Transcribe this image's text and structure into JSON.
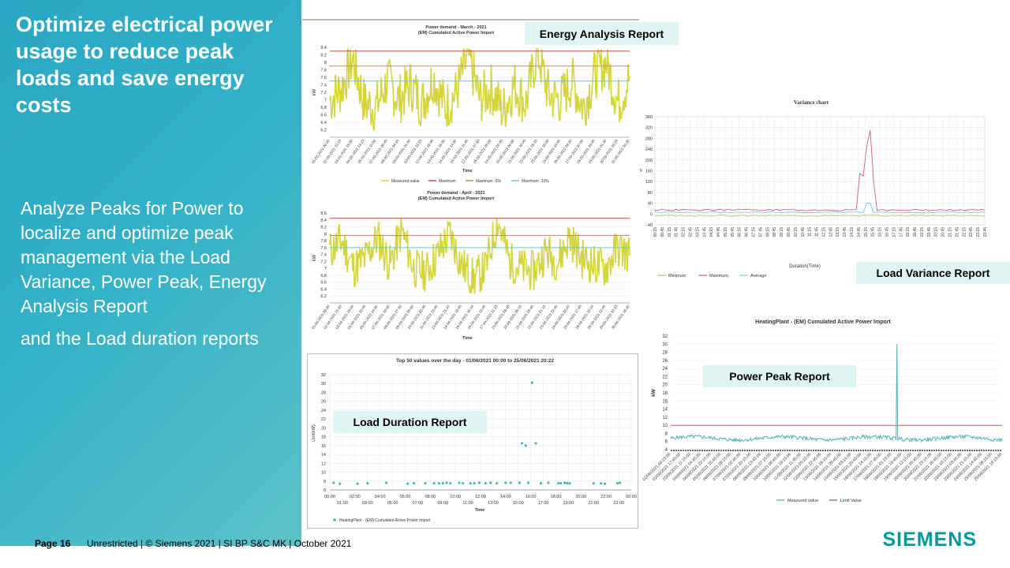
{
  "slide": {
    "title": "Optimize electrical power usage to reduce peak loads and save energy costs",
    "body_para1": "Analyze Peaks for Power to localize and optimize peak management via the Load Variance, Power Peak, Energy Analysis Report",
    "body_para2": "and the Load duration reports",
    "page": "Page 16",
    "footer": "Unrestricted | © Siemens 2021 | SI BP S&C MK | October 2021",
    "logo": "SIEMENS"
  },
  "colors": {
    "panel_gradient_start": "#2aa6c4",
    "panel_gradient_end": "#5cc2c9",
    "label_bg": "#dff5f2",
    "measured": "#d4d43c",
    "maximum": "#c0504d",
    "max_minus5": "#c98a6a",
    "max_minus10": "#66c8d8",
    "teal_series": "#4eb3b3",
    "siemens_teal": "#009999"
  },
  "labels": {
    "energy_analysis": "Energy Analysis Report",
    "load_variance": "Load Variance Report",
    "power_peak": "Power Peak Report",
    "load_duration": "Load Duration Report"
  },
  "chart_data": [
    {
      "id": "march",
      "type": "line",
      "title": "Power demand - March - 2021",
      "subtitle": "(EM) Cumulated Active Power Import",
      "xlabel": "Time",
      "ylabel": "kW",
      "ylim": [
        6.0,
        8.4
      ],
      "yticks": [
        "8.4",
        "8.2",
        "8",
        "7.8",
        "7.6",
        "7.4",
        "7.2",
        "7",
        "6.8",
        "6.6",
        "6.4",
        "6.2"
      ],
      "xticks": [
        "01-03-2021 00:30",
        "02-03-2021 22:15",
        "03-03-2021 15:30",
        "04-03-2021 13:15",
        "05-03-2021 11:00",
        "07-03-2021 06:45",
        "08-03-2021 04:15",
        "09-03-2021 01:30",
        "10-03-2021 23:15",
        "12-03-2021 18:45",
        "13-03-2021 16:30",
        "14-03-2021 14:00",
        "15-03-2021 11:45",
        "17-03-2021 07:30",
        "18-03-2021 05:00",
        "19-03-2021 02:45",
        "20-03-2021 00:30",
        "21-03-2021 20:45",
        "22-03-2021 18:15",
        "23-03-2021 16:00",
        "24-03-2021 13:45",
        "26-03-2021 09:30",
        "27-03-2021 07:00",
        "28-03-2021 03:45",
        "29-03-2021 01:30",
        "30-03-2021 23:15",
        "31-03-2021 20:30"
      ],
      "lines": {
        "maximum": 8.3,
        "max_minus5": 7.9,
        "max_minus10": 7.5
      },
      "legend": [
        "Measured value",
        "Maximum",
        "Maximum -5%",
        "Maximum -10%"
      ],
      "measured_pattern": [
        7.0,
        7.3,
        8.1,
        6.9,
        6.8,
        7.5,
        7.0,
        7.4,
        6.9,
        7.6,
        6.8,
        7.2,
        8.2,
        7.0,
        7.3,
        6.7,
        7.4,
        6.9,
        8.3,
        7.1,
        7.0,
        7.5,
        6.8,
        7.7,
        8.0,
        6.9,
        7.6
      ],
      "measured_spread": 0.7
    },
    {
      "id": "april",
      "type": "line",
      "title": "Power demand - April - 2021",
      "subtitle": "(EM) Cumulated Active Power Import",
      "xlabel": "Time",
      "ylabel": "kW",
      "ylim": [
        6.0,
        8.6
      ],
      "yticks": [
        "8.6",
        "8.4",
        "8.2",
        "8",
        "7.8",
        "7.6",
        "7.4",
        "7.2",
        "7",
        "6.8",
        "6.6",
        "6.4",
        "6.2"
      ],
      "xticks": [
        "01-04-2021 00:30",
        "02-04-2021 21:30",
        "03-04-2021 19:00",
        "04-04-2021 16:45",
        "05-04-2021 14:30",
        "07-04-2021 10:00",
        "08-04-2021 07:30",
        "09-04-2021 05:00",
        "10-04-2021 02:45",
        "11-04-2021 23:45",
        "13-04-2021 21:15",
        "14-04-2021 18:45",
        "15-04-2021 16:15",
        "16-04-2021 13:45",
        "17-04-2021 11:15",
        "19-04-2021 08:45",
        "20-04-2021 06:15",
        "21-04-2021 03:45",
        "22-04-2021 01:15",
        "23-04-2021 22:45",
        "24-04-2021 20:15",
        "25-04-2021 17:45",
        "26-04-2021 15:15",
        "28-04-2021 12:45",
        "29-04-2021 10:15",
        "30-04-2021 16:30"
      ],
      "lines": {
        "maximum": 8.45,
        "max_minus5": 7.95,
        "max_minus10": 7.6
      },
      "measured_pattern": [
        7.5,
        7.8,
        7.0,
        7.3,
        7.9,
        7.1,
        8.1,
        7.0,
        6.9,
        7.4,
        8.0,
        7.1,
        6.7,
        7.0,
        8.4,
        7.2,
        7.0,
        6.9,
        7.5,
        7.2,
        7.9,
        7.3,
        7.1,
        7.0,
        7.6,
        7.4
      ],
      "measured_spread": 0.6
    },
    {
      "id": "variance",
      "type": "line",
      "title": "Variance chart",
      "xlabel": "Duration(Time)",
      "ylabel": "F",
      "ylim": [
        -40,
        360
      ],
      "yticks": [
        "360",
        "320",
        "280",
        "240",
        "200",
        "160",
        "120",
        "80",
        "40",
        "0",
        "-40"
      ],
      "xticks": [
        "00:15",
        "00:45",
        "01:15",
        "01:45",
        "02:15",
        "02:45",
        "03:15",
        "03:45",
        "04:15",
        "04:45",
        "05:15",
        "05:45",
        "06:15",
        "06:45",
        "07:15",
        "07:45",
        "08:15",
        "08:45",
        "09:15",
        "09:45",
        "10:15",
        "10:45",
        "11:15",
        "11:45",
        "12:15",
        "12:45",
        "13:15",
        "13:45",
        "14:15",
        "14:45",
        "15:15",
        "15:45",
        "16:15",
        "16:45",
        "17:15",
        "17:45",
        "18:15",
        "18:45",
        "19:15",
        "19:45",
        "20:15",
        "20:45",
        "21:15",
        "21:45",
        "22:15",
        "22:45",
        "23:15",
        "23:45"
      ],
      "legend": [
        "Minimum",
        "Maximum",
        "Average"
      ],
      "peak": {
        "time": "16:30",
        "value": 310
      }
    },
    {
      "id": "heating",
      "type": "line",
      "title": "HeatingPlant - (EM) Cumulated Active Power Import",
      "ylabel": "kW",
      "ylim": [
        4,
        32
      ],
      "yticks": [
        "32",
        "30",
        "28",
        "26",
        "24",
        "22",
        "20",
        "18",
        "16",
        "14",
        "12",
        "10",
        "8",
        "6",
        "4"
      ],
      "xticks": [
        "01/06/2021 00:15:00",
        "02/06/2021 17:45:00",
        "03/06/2021 11:15:00",
        "04/06/2021 04:45:00",
        "04/06/2021 22:15:00",
        "05/06/2021 15:45:00",
        "06/06/2021 09:15:00",
        "07/06/2021 02:45:00",
        "07/06/2021 20:15:00",
        "08/06/2021 13:45:00",
        "09/06/2021 07:15:00",
        "10/06/2021 00:45:00",
        "10/06/2021 18:15:00",
        "11/06/2021 11:45:00",
        "12/06/2021 05:15:00",
        "12/06/2021 22:45:00",
        "13/06/2021 16:15:00",
        "14/06/2021 09:45:00",
        "15/06/2021 03:15:00",
        "15/06/2021 20:45:00",
        "16/06/2021 14:15:00",
        "17/06/2021 07:45:00",
        "18/06/2021 01:15:00",
        "18/06/2021 18:45:00",
        "19/06/2021 12:15:00",
        "20/06/2021 05:45:00",
        "20/06/2021 23:15:00",
        "21/06/2021 16:45:00",
        "22/06/2021 10:15:00",
        "23/06/2021 03:45:00",
        "23/06/2021 21:15:00",
        "24/06/2021 14:45:00",
        "25/06/2021 08:15:00",
        "25/06/2021 19:15:00"
      ],
      "legend": [
        "Measured value",
        "Limit Value"
      ],
      "limit": 10,
      "base": 6.8,
      "peak": {
        "time": "16/06/2021 14:15:00",
        "value": 30
      }
    },
    {
      "id": "duration",
      "type": "scatter",
      "title": "Top 50 values over the day - 01/06/2021 00:00 to 25/06/2021 20:22",
      "xlabel": "Time",
      "ylabel": "Unit(kW)",
      "ylim": [
        6,
        32
      ],
      "yticks": [
        "32",
        "30",
        "28",
        "26",
        "24",
        "22",
        "20",
        "18",
        "16",
        "14",
        "12",
        "10",
        "8",
        "6"
      ],
      "xticks_top": [
        "00:00",
        "02:00",
        "04:00",
        "06:00",
        "08:00",
        "10:00",
        "12:00",
        "14:00",
        "16:00",
        "18:00",
        "20:00",
        "22:00",
        "00:00"
      ],
      "xticks_bottom": [
        "01:00",
        "03:00",
        "05:00",
        "07:00",
        "09:00",
        "11:00",
        "13:00",
        "15:00",
        "17:00",
        "19:00",
        "21:00",
        "23:00"
      ],
      "legend": [
        "HeatingPlant - (EM) Cumulated Active Power Import"
      ],
      "x": [
        0.3,
        0.8,
        2.2,
        3.0,
        4.5,
        6.2,
        6.7,
        7.6,
        8.3,
        8.7,
        9.0,
        9.3,
        9.6,
        10.3,
        10.6,
        11.2,
        11.5,
        11.9,
        12.4,
        12.8,
        13.3,
        14.0,
        14.4,
        15.1,
        15.3,
        15.6,
        15.8,
        16.1,
        16.4,
        16.8,
        17.4,
        18.2,
        18.4,
        18.7,
        18.9,
        19.1,
        21.0,
        21.6,
        21.9,
        22.9,
        23.1
      ],
      "y": [
        7.6,
        7.4,
        7.4,
        7.5,
        7.6,
        7.4,
        7.5,
        7.5,
        7.5,
        7.5,
        7.5,
        7.6,
        7.5,
        7.6,
        7.5,
        7.5,
        7.5,
        7.6,
        7.5,
        7.6,
        7.5,
        7.6,
        7.6,
        7.6,
        16.5,
        16.0,
        7.6,
        30.2,
        16.5,
        7.5,
        7.6,
        7.5,
        7.5,
        7.6,
        7.5,
        7.5,
        7.5,
        7.5,
        7.4,
        7.5,
        7.6
      ]
    }
  ]
}
